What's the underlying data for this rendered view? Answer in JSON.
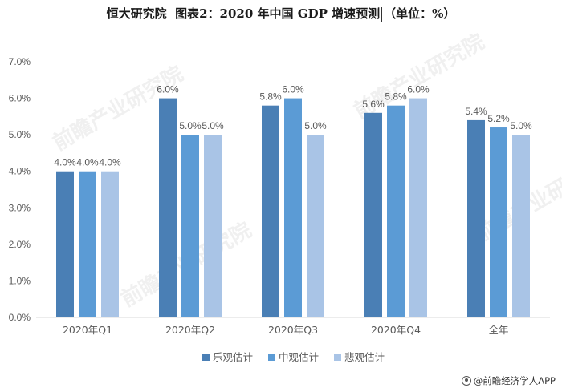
{
  "title_left": "恒大研究院",
  "title_main": "图表2：2020 年中国 GDP 增速预测",
  "title_unit": "（单位：%）",
  "footer_text": "@前瞻经济学人APP",
  "watermark_text": "前瞻产业研究院",
  "colors": {
    "optimistic": "#4a7fb5",
    "neutral": "#5b9bd5",
    "pessimistic": "#a9c4e6",
    "axis": "#d9d9d9",
    "text": "#595959"
  },
  "chart_data": {
    "type": "bar",
    "title": "2020 年中国 GDP 增速预测（单位：%）",
    "categories": [
      "2020年Q1",
      "2020年Q2",
      "2020年Q3",
      "2020年Q4",
      "全年"
    ],
    "series": [
      {
        "name": "乐观估计",
        "values": [
          4.0,
          6.0,
          5.8,
          5.6,
          5.4
        ],
        "labels": [
          "4.0%",
          "6.0%",
          "5.8%",
          "5.6%",
          "5.4%"
        ]
      },
      {
        "name": "中观估计",
        "values": [
          4.0,
          5.0,
          6.0,
          5.8,
          5.2
        ],
        "labels": [
          "4.0%",
          "5.0%",
          "6.0%",
          "5.8%",
          "5.2%"
        ]
      },
      {
        "name": "悲观估计",
        "values": [
          4.0,
          5.0,
          5.0,
          6.0,
          5.0
        ],
        "labels": [
          "4.0%",
          "5.0%",
          "5.0%",
          "6.0%",
          "5.0%"
        ]
      }
    ],
    "ylim": [
      0,
      7
    ],
    "yticks": [
      "0.0%",
      "1.0%",
      "2.0%",
      "3.0%",
      "4.0%",
      "5.0%",
      "6.0%",
      "7.0%"
    ],
    "xlabel": "",
    "ylabel": "",
    "legend_position": "bottom"
  }
}
